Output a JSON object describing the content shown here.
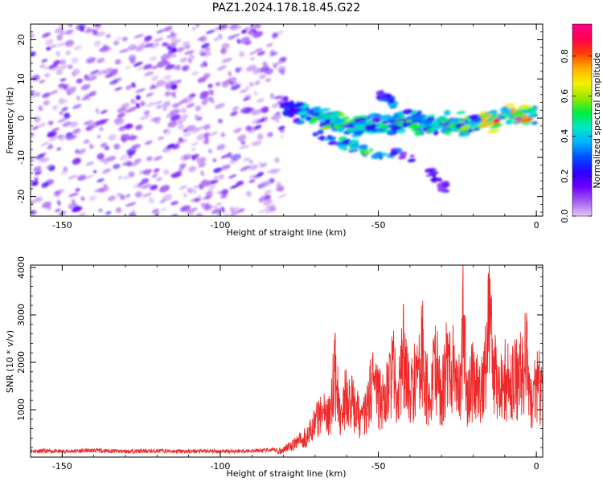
{
  "title": "PAZ1.2024.178.18.45.G22",
  "colors": {
    "snr_line": "#ee2a2a",
    "frame": "#000000",
    "spectrogram_noise": "#8a2be2",
    "colormap": [
      "#e2c8f5",
      "#a35cf0",
      "#6a00ff",
      "#2a00ff",
      "#0050ff",
      "#00b4ff",
      "#00e6c8",
      "#00ee40",
      "#9ae600",
      "#f5f000",
      "#ffb000",
      "#ff4000",
      "#ff0050",
      "#ff0088"
    ]
  },
  "chart_data": [
    {
      "type": "heatmap",
      "title": "",
      "xlabel": "Height of straight line (km)",
      "ylabel": "Frequency (Hz)",
      "xlim": [
        -160,
        2
      ],
      "ylim": [
        -25,
        24
      ],
      "xticks": [
        -150,
        -100,
        -50,
        0
      ],
      "yticks": [
        -20,
        -10,
        0,
        10,
        20
      ],
      "colorbar": {
        "label": "Normalized spectral amplitude",
        "range": [
          0,
          0.96
        ],
        "ticks": [
          "0.0",
          "0.2",
          "0.4",
          "0.6",
          "0.8"
        ],
        "tick_values": [
          0,
          0.2,
          0.4,
          0.6,
          0.8
        ]
      },
      "description_regions": {
        "noise_band": {
          "x_from": -160,
          "x_to": -80,
          "freq_from": -25,
          "freq_to": 24,
          "amplitude": 0.1
        },
        "signal_trace": [
          {
            "x": -80,
            "freq": 3,
            "amp": 0.3
          },
          {
            "x": -70,
            "freq": 0.5,
            "amp": 0.55
          },
          {
            "x": -60,
            "freq": -2,
            "amp": 0.5
          },
          {
            "x": -50,
            "freq": -1.5,
            "amp": 0.45
          },
          {
            "x": -40,
            "freq": -1,
            "amp": 0.5
          },
          {
            "x": -30,
            "freq": -1.5,
            "amp": 0.45
          },
          {
            "x": -20,
            "freq": -1,
            "amp": 0.55
          },
          {
            "x": -10,
            "freq": 0,
            "amp": 0.85
          },
          {
            "x": 0,
            "freq": 1.5,
            "amp": 0.75
          }
        ],
        "lower_branch": [
          {
            "x": -70,
            "freq": -4,
            "amp": 0.3
          },
          {
            "x": -55,
            "freq": -8,
            "amp": 0.55
          },
          {
            "x": -40,
            "freq": -10,
            "amp": 0.2
          },
          {
            "x": -28,
            "freq": -18,
            "amp": 0.25
          }
        ],
        "upper_branch": [
          {
            "x": -50,
            "freq": 6,
            "amp": 0.3
          },
          {
            "x": -45,
            "freq": 4,
            "amp": 0.35
          }
        ]
      }
    },
    {
      "type": "line",
      "title": "",
      "xlabel": "Height of straight line (km)",
      "ylabel": "SNR (10 * v/v)",
      "xlim": [
        -160,
        2
      ],
      "ylim": [
        0,
        4050
      ],
      "xticks": [
        -150,
        -100,
        -50,
        0
      ],
      "yticks": [
        1000,
        2000,
        3000,
        4000
      ],
      "series": [
        {
          "x": [
            -160,
            -150,
            -140,
            -130,
            -120,
            -110,
            -100,
            -90,
            -82,
            -78,
            -75,
            -72,
            -70,
            -68,
            -65,
            -64,
            -62,
            -60,
            -58,
            -55,
            -52,
            -50,
            -48,
            -45,
            -44,
            -42,
            -40,
            -38,
            -36,
            -34,
            -32,
            -30,
            -28,
            -26,
            -24,
            -23,
            -22,
            -20,
            -18,
            -16,
            -15,
            -14,
            -12,
            -10,
            -8,
            -6,
            -4,
            -3,
            -2,
            0,
            2
          ],
          "values": [
            130,
            120,
            140,
            120,
            130,
            120,
            125,
            130,
            150,
            280,
            450,
            600,
            900,
            1200,
            1100,
            2500,
            1000,
            1800,
            1400,
            1000,
            1900,
            1600,
            1500,
            2500,
            1200,
            3000,
            1600,
            2200,
            2800,
            1500,
            2600,
            1600,
            2700,
            2300,
            1900,
            3900,
            1500,
            2200,
            1700,
            2500,
            4050,
            2800,
            1600,
            2100,
            1900,
            2200,
            2300,
            3000,
            1500,
            1900,
            1900
          ]
        }
      ]
    }
  ]
}
